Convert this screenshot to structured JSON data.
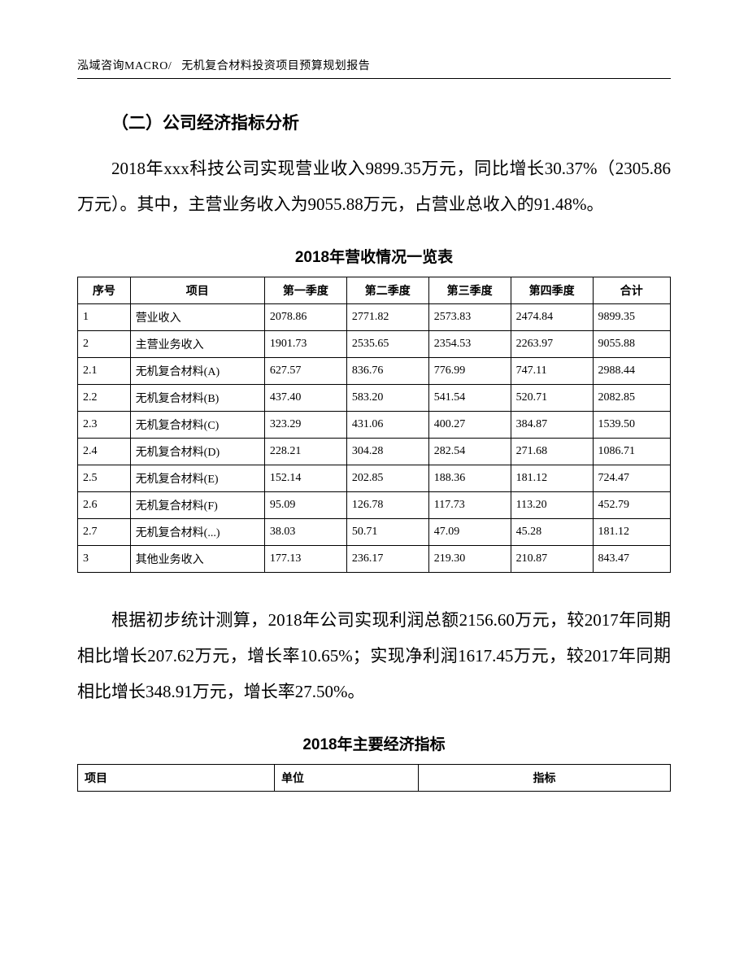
{
  "header": {
    "left": "泓域咨询MACRO/",
    "right": "无机复合材料投资项目预算规划报告"
  },
  "section_heading": "（二）公司经济指标分析",
  "paragraph1": "2018年xxx科技公司实现营业收入9899.35万元，同比增长30.37%（2305.86万元）。其中，主营业务收入为9055.88万元，占营业总收入的91.48%。",
  "revenue_table": {
    "title": "2018年营收情况一览表",
    "columns": [
      "序号",
      "项目",
      "第一季度",
      "第二季度",
      "第三季度",
      "第四季度",
      "合计"
    ],
    "rows": [
      [
        "1",
        "营业收入",
        "2078.86",
        "2771.82",
        "2573.83",
        "2474.84",
        "9899.35"
      ],
      [
        "2",
        "主营业务收入",
        "1901.73",
        "2535.65",
        "2354.53",
        "2263.97",
        "9055.88"
      ],
      [
        "2.1",
        "无机复合材料(A)",
        "627.57",
        "836.76",
        "776.99",
        "747.11",
        "2988.44"
      ],
      [
        "2.2",
        "无机复合材料(B)",
        "437.40",
        "583.20",
        "541.54",
        "520.71",
        "2082.85"
      ],
      [
        "2.3",
        "无机复合材料(C)",
        "323.29",
        "431.06",
        "400.27",
        "384.87",
        "1539.50"
      ],
      [
        "2.4",
        "无机复合材料(D)",
        "228.21",
        "304.28",
        "282.54",
        "271.68",
        "1086.71"
      ],
      [
        "2.5",
        "无机复合材料(E)",
        "152.14",
        "202.85",
        "188.36",
        "181.12",
        "724.47"
      ],
      [
        "2.6",
        "无机复合材料(F)",
        "95.09",
        "126.78",
        "117.73",
        "113.20",
        "452.79"
      ],
      [
        "2.7",
        "无机复合材料(...)",
        "38.03",
        "50.71",
        "47.09",
        "45.28",
        "181.12"
      ],
      [
        "3",
        "其他业务收入",
        "177.13",
        "236.17",
        "219.30",
        "210.87",
        "843.47"
      ]
    ]
  },
  "paragraph2": "根据初步统计测算，2018年公司实现利润总额2156.60万元，较2017年同期相比增长207.62万元，增长率10.65%；实现净利润1617.45万元，较2017年同期相比增长348.91万元，增长率27.50%。",
  "indicator_table": {
    "title": "2018年主要经济指标",
    "columns": [
      "项目",
      "单位",
      "指标"
    ]
  }
}
